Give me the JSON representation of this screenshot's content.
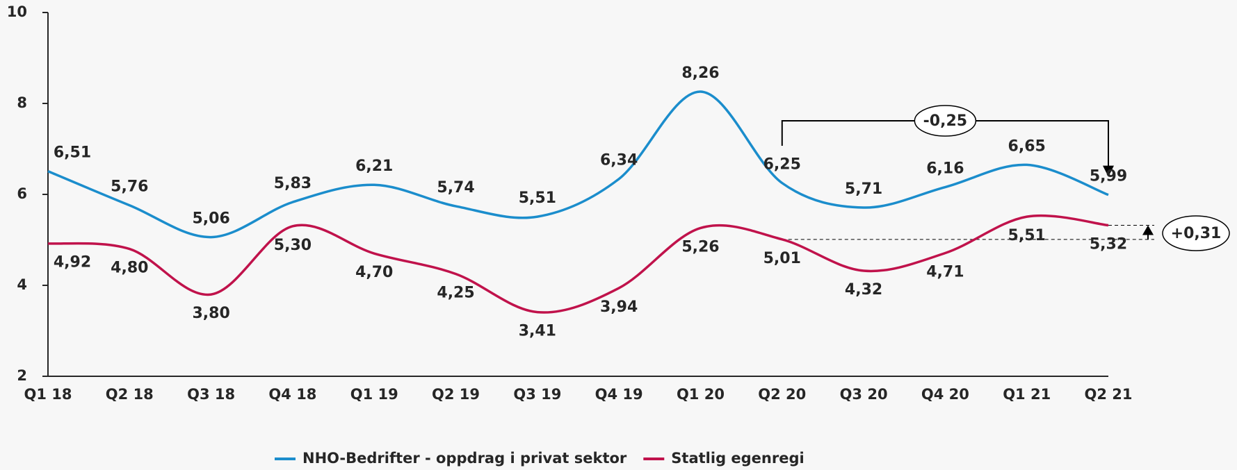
{
  "chart_data": {
    "type": "line",
    "categories": [
      "Q1 18",
      "Q2 18",
      "Q3 18",
      "Q4 18",
      "Q1 19",
      "Q2 19",
      "Q3 19",
      "Q4 19",
      "Q1 20",
      "Q2 20",
      "Q3 20",
      "Q4 20",
      "Q1 21",
      "Q2 21"
    ],
    "series": [
      {
        "name": "NHO-Bedrifter - oppdrag i privat sektor",
        "color": "#1b8dcc",
        "values": [
          6.51,
          5.76,
          5.06,
          5.83,
          6.21,
          5.74,
          5.51,
          6.34,
          8.26,
          6.25,
          5.71,
          6.16,
          6.65,
          5.99
        ],
        "value_labels": [
          "6,51",
          "5,76",
          "5,06",
          "5,83",
          "6,21",
          "5,74",
          "5,51",
          "6,34",
          "8,26",
          "6,25",
          "5,71",
          "6,16",
          "6,65",
          "5,99"
        ]
      },
      {
        "name": "Statlig egenregi",
        "color": "#c0124b",
        "values": [
          4.92,
          4.8,
          3.8,
          5.3,
          4.7,
          4.25,
          3.41,
          3.94,
          5.26,
          5.01,
          4.32,
          4.71,
          5.51,
          5.32
        ],
        "value_labels": [
          "4,92",
          "4,80",
          "3,80",
          "5,30",
          "4,70",
          "4,25",
          "3,41",
          "3,94",
          "5,26",
          "5,01",
          "4,32",
          "4,71",
          "5,51",
          "5,32"
        ]
      }
    ],
    "ylim": [
      2,
      10
    ],
    "yticks": [
      2,
      4,
      6,
      8,
      10
    ],
    "annotations": [
      {
        "text": "-0,25"
      },
      {
        "text": "+0,31"
      }
    ],
    "legend": "bottom"
  }
}
